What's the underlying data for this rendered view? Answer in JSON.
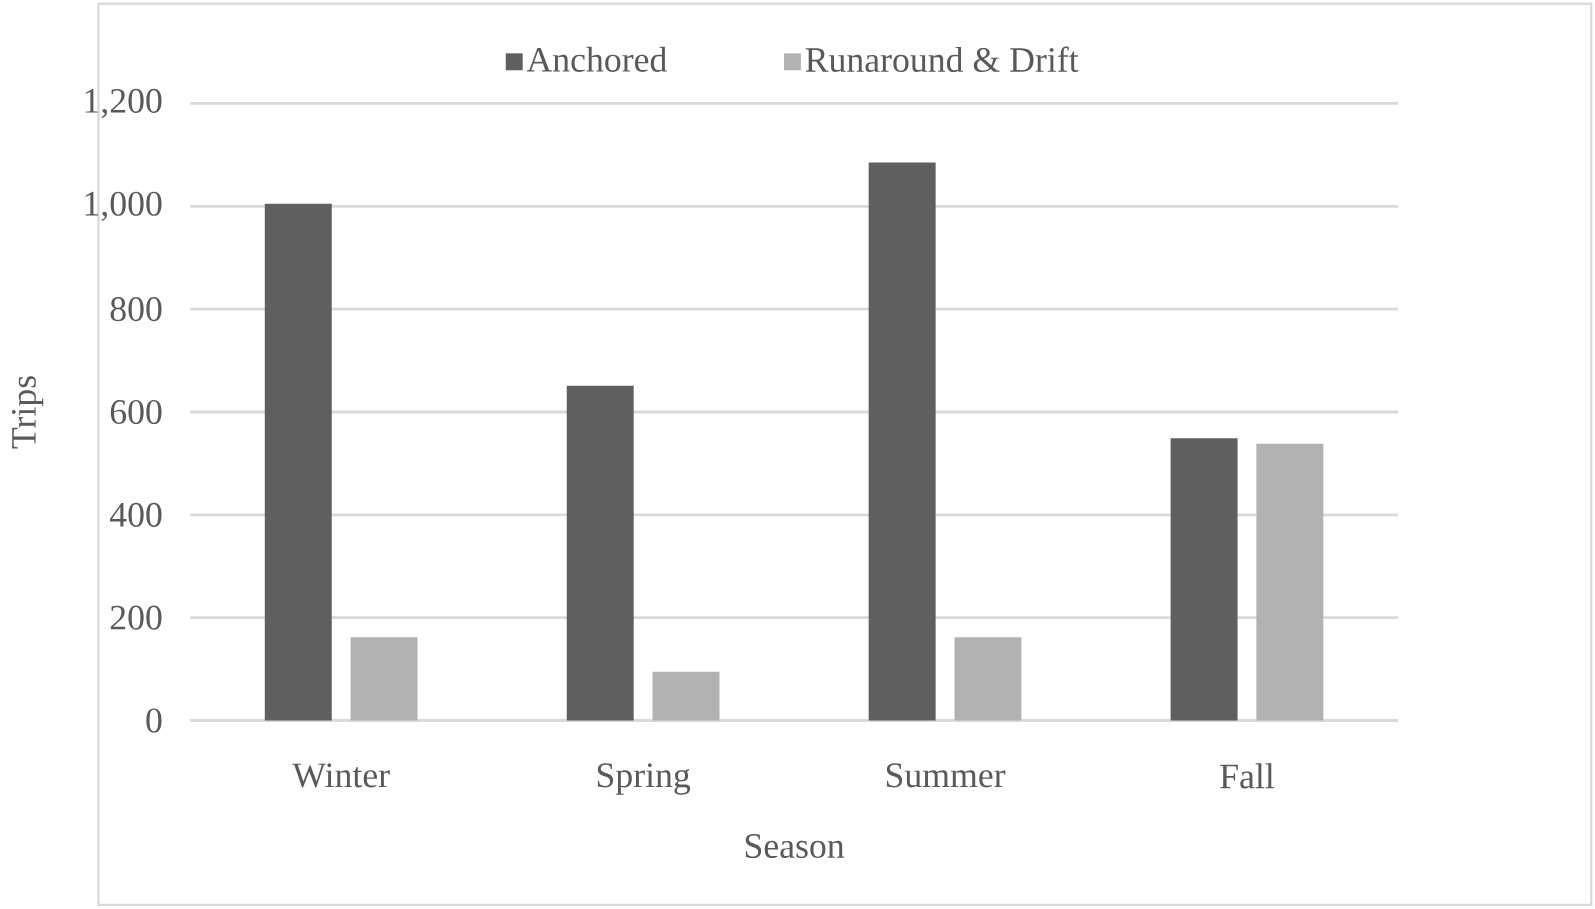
{
  "chart_data": {
    "type": "bar",
    "xlabel": "Season",
    "ylabel": "Trips",
    "categories": [
      "Winter",
      "Spring",
      "Summer",
      "Fall"
    ],
    "series": [
      {
        "name": "Anchored",
        "color": "#5f5f5f",
        "values": [
          1005,
          651,
          1085,
          549
        ]
      },
      {
        "name": "Runaround & Drift",
        "color": "#b2b2b2",
        "values": [
          162,
          95,
          162,
          538
        ]
      }
    ],
    "ylim": [
      0,
      1200
    ],
    "yticks": [
      0,
      {
        "value": 200,
        "label": "200"
      },
      {
        "value": 400,
        "label": "400"
      },
      {
        "value": 600,
        "label": "600"
      },
      {
        "value": 800,
        "label": "800"
      },
      {
        "value": 1000,
        "label": "1,000"
      },
      {
        "value": 1200,
        "label": "1,200"
      }
    ],
    "grid": "y",
    "legend": "top"
  }
}
